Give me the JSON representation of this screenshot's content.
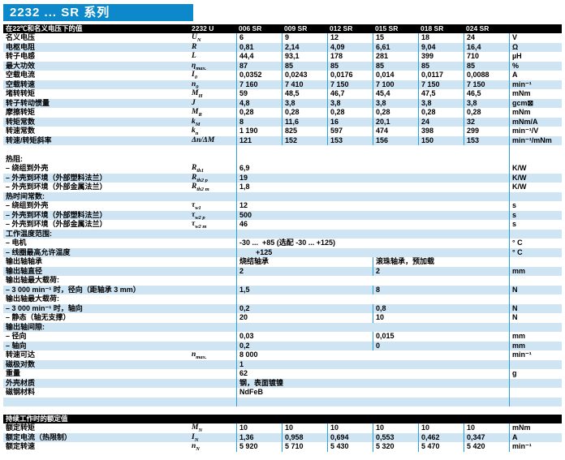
{
  "title": "2232  ...  SR  系列",
  "colors": {
    "banner_blue": "#0d89cb",
    "stripe_blue": "#cfe5f4",
    "line_blue": "#2b9fd6",
    "bar_black": "#000000"
  },
  "header": {
    "left_label": "在22℃和名义电压下的值",
    "model": "2232 U",
    "columns": [
      "006 SR",
      "009 SR",
      "012 SR",
      "015 SR",
      "018 SR",
      "024 SR"
    ]
  },
  "main_table": {
    "rows": [
      {
        "kind": "six",
        "label": "名义电压",
        "sym": "U",
        "sub": "N",
        "values": [
          "6",
          "9",
          "12",
          "15",
          "18",
          "24"
        ],
        "unit": "V"
      },
      {
        "kind": "six",
        "label": "电枢电阻",
        "sym": "R",
        "sub": "",
        "values": [
          "0,81",
          "2,14",
          "4,09",
          "6,61",
          "9,04",
          "16,4"
        ],
        "unit": "Ω"
      },
      {
        "kind": "six",
        "label": "转子电感",
        "sym": "L",
        "sub": "",
        "values": [
          "44,4",
          "93,1",
          "178",
          "281",
          "399",
          "710"
        ],
        "unit": "µH"
      },
      {
        "kind": "six",
        "label": "最大功效",
        "sym": "η",
        "sub": "max.",
        "values": [
          "87",
          "85",
          "85",
          "85",
          "85",
          "85"
        ],
        "unit": "%"
      },
      {
        "kind": "six",
        "label": "空载电流",
        "sym": "I",
        "sub": "0",
        "values": [
          "0,0352",
          "0,0243",
          "0,0176",
          "0,014",
          "0,0117",
          "0,0088"
        ],
        "unit": "A"
      },
      {
        "kind": "six",
        "label": "空载转速",
        "sym": "n",
        "sub": "0",
        "values": [
          "7 160",
          "7 410",
          "7 150",
          "7 100",
          "7 150",
          "7 150"
        ],
        "unit": "min⁻¹"
      },
      {
        "kind": "six",
        "label": "堵转转矩",
        "sym": "M",
        "sub": "H",
        "values": [
          "59",
          "48,5",
          "46,7",
          "45,4",
          "47,5",
          "46,5"
        ],
        "unit": "mNm"
      },
      {
        "kind": "six",
        "label": "转子转动惯量",
        "sym": "J",
        "sub": "",
        "values": [
          "4,8",
          "3,8",
          "3,8",
          "3,8",
          "3,8",
          "3,8"
        ],
        "unit": "gcm⊠"
      },
      {
        "kind": "six",
        "label": "摩擦转矩",
        "sym": "M",
        "sub": "R",
        "values": [
          "0,28",
          "0,28",
          "0,28",
          "0,28",
          "0,28",
          "0,28"
        ],
        "unit": "mNm"
      },
      {
        "kind": "six",
        "label": "转矩常数",
        "sym": "k",
        "sub": "M",
        "values": [
          "8",
          "11,6",
          "16",
          "20,1",
          "24",
          "32"
        ],
        "unit": "mNm/A"
      },
      {
        "kind": "six",
        "label": "转速常数",
        "sym": "k",
        "sub": "n",
        "values": [
          "1 190",
          "825",
          "597",
          "474",
          "398",
          "299"
        ],
        "unit": "min⁻¹/V"
      },
      {
        "kind": "six",
        "label": "转速/转矩斜率",
        "sym": "Δn/ΔM",
        "sub": "",
        "values": [
          "121",
          "152",
          "153",
          "156",
          "150",
          "153"
        ],
        "unit": "min⁻¹/mNm"
      },
      {
        "kind": "gap",
        "label": "",
        "sym": "",
        "sub": "",
        "values": [],
        "unit": ""
      },
      {
        "kind": "head",
        "label": "热阻:",
        "sym": "",
        "sub": "",
        "values": [],
        "unit": ""
      },
      {
        "kind": "wide",
        "label": "– 绕组到外壳",
        "sym": "R",
        "sub": "th1",
        "values": [
          "6,9"
        ],
        "unit": "K/W"
      },
      {
        "kind": "wide",
        "label": "– 外壳到环境（外部塑料法兰）",
        "sym": "R",
        "sub": "th2 p",
        "values": [
          "19"
        ],
        "unit": "K/W"
      },
      {
        "kind": "wide",
        "label": "– 外壳到环境（外部金属法兰）",
        "sym": "R",
        "sub": "th2 m",
        "values": [
          "1,8"
        ],
        "unit": "K/W"
      },
      {
        "kind": "head",
        "label": "热时间常数:",
        "sym": "",
        "sub": "",
        "values": [],
        "unit": ""
      },
      {
        "kind": "wide",
        "label": "– 绕组到外壳",
        "sym": "τ",
        "sub": "w1",
        "values": [
          "12"
        ],
        "unit": "s"
      },
      {
        "kind": "wide",
        "label": "– 外壳到环境（外部塑料法兰）",
        "sym": "τ",
        "sub": "w2 p",
        "values": [
          "500"
        ],
        "unit": "s"
      },
      {
        "kind": "wide",
        "label": "– 外壳到环境（外部金属法兰）",
        "sym": "τ",
        "sub": "w2 m",
        "values": [
          "46"
        ],
        "unit": "s"
      },
      {
        "kind": "head",
        "label": "工作温度范围:",
        "sym": "",
        "sub": "",
        "values": [],
        "unit": ""
      },
      {
        "kind": "wide",
        "label": "– 电机",
        "sym": "",
        "sub": "",
        "values": [
          "-30 ...  +85 (选配 -30 ... +125)"
        ],
        "unit": "° C"
      },
      {
        "kind": "wide",
        "label": "– 线圈最高允许温度",
        "sym": "",
        "sub": "",
        "values": [
          "        +125"
        ],
        "unit": "° C"
      },
      {
        "kind": "split",
        "label": "输出轴轴承",
        "sym": "",
        "sub": "",
        "values": [
          "烧结轴承",
          "滚珠轴承，预加载"
        ],
        "unit": ""
      },
      {
        "kind": "split",
        "label": "输出轴直径",
        "sym": "",
        "sub": "",
        "values": [
          "2",
          "2"
        ],
        "unit": "mm"
      },
      {
        "kind": "head",
        "label": "输出轴最大载荷:",
        "sym": "",
        "sub": "",
        "values": [],
        "unit": ""
      },
      {
        "kind": "split",
        "label": "– 3 000 min⁻¹ 时，径向（距轴承 3 mm）",
        "sym": "",
        "sub": "",
        "values": [
          "1,5",
          "8"
        ],
        "unit": "N"
      },
      {
        "kind": "head",
        "label": "输出轴最大载荷:",
        "sym": "",
        "sub": "",
        "values": [],
        "unit": ""
      },
      {
        "kind": "split",
        "label": "– 3 000 min⁻¹ 时，轴向",
        "sym": "",
        "sub": "",
        "values": [
          "0,2",
          "0,8"
        ],
        "unit": "N"
      },
      {
        "kind": "split",
        "label": "– 静态（轴无支撑）",
        "sym": "",
        "sub": "",
        "values": [
          "20",
          "10"
        ],
        "unit": "N"
      },
      {
        "kind": "head",
        "label": "输出轴间隙:",
        "sym": "",
        "sub": "",
        "values": [],
        "unit": ""
      },
      {
        "kind": "split",
        "label": "– 径向",
        "sym": "",
        "sub": "",
        "values": [
          "0,03",
          "0,015"
        ],
        "unit": "mm"
      },
      {
        "kind": "split",
        "label": "– 轴向",
        "sym": "",
        "sub": "",
        "values": [
          "0,2",
          "0"
        ],
        "unit": "mm"
      },
      {
        "kind": "wide",
        "label": "转速可达",
        "sym": "n",
        "sub": "max.",
        "values": [
          "8 000"
        ],
        "unit": "min⁻¹"
      },
      {
        "kind": "wide",
        "label": "磁极对数",
        "sym": "",
        "sub": "",
        "values": [
          "1"
        ],
        "unit": ""
      },
      {
        "kind": "wide",
        "label": "重量",
        "sym": "",
        "sub": "",
        "values": [
          "62"
        ],
        "unit": "g"
      },
      {
        "kind": "wide",
        "label": "外壳材质",
        "sym": "",
        "sub": "",
        "values": [
          "钢，表面镀镍"
        ],
        "unit": ""
      },
      {
        "kind": "wide",
        "label": "磁钢材料",
        "sym": "",
        "sub": "",
        "values": [
          "NdFeB"
        ],
        "unit": ""
      },
      {
        "kind": "gap",
        "label": "",
        "sym": "",
        "sub": "",
        "values": [],
        "unit": ""
      }
    ]
  },
  "rated": {
    "banner": "持续工作时的额定值",
    "rows": [
      {
        "kind": "six",
        "label": "额定转矩",
        "sym": "M",
        "sub": "N",
        "values": [
          "10",
          "10",
          "10",
          "10",
          "10",
          "10"
        ],
        "unit": "mNm"
      },
      {
        "kind": "six",
        "label": "额定电流（热限制）",
        "sym": "I",
        "sub": "N",
        "values": [
          "1,36",
          "0,958",
          "0,694",
          "0,553",
          "0,462",
          "0,347"
        ],
        "unit": "A"
      },
      {
        "kind": "six",
        "label": "额定转速",
        "sym": "n",
        "sub": "N",
        "values": [
          "5 920",
          "5 710",
          "5 430",
          "5 320",
          "5 470",
          "5 420"
        ],
        "unit": "min⁻¹"
      }
    ]
  }
}
